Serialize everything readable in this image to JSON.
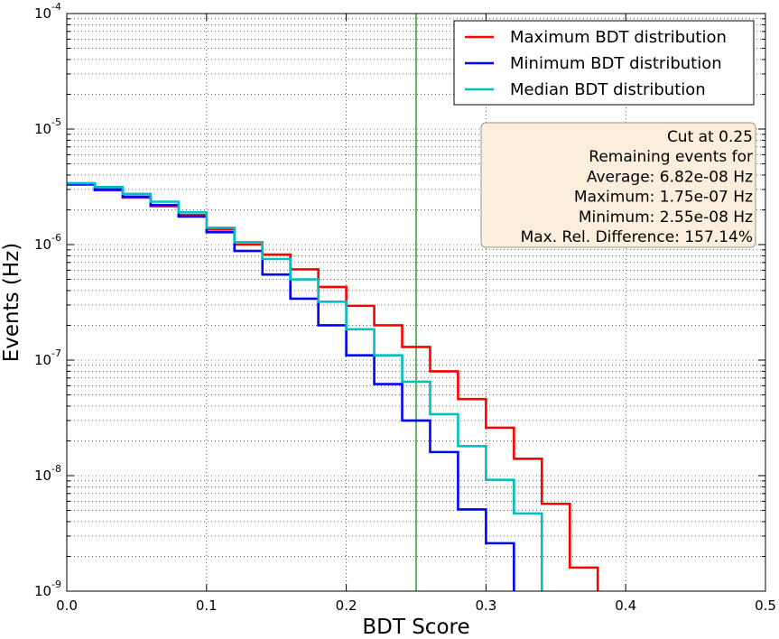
{
  "chart_data": {
    "type": "line",
    "xlabel": "BDT Score",
    "ylabel": "Events (Hz)",
    "xlim": [
      0.0,
      0.5
    ],
    "ylim": [
      1e-09,
      0.0001
    ],
    "yscale": "log",
    "grid": true,
    "x_ticks": [
      "0.0",
      "0.1",
      "0.2",
      "0.3",
      "0.4",
      "0.5"
    ],
    "y_ticks": [
      {
        "base": "10",
        "exp": "-9"
      },
      {
        "base": "10",
        "exp": "-8"
      },
      {
        "base": "10",
        "exp": "-7"
      },
      {
        "base": "10",
        "exp": "-6"
      },
      {
        "base": "10",
        "exp": "-5"
      },
      {
        "base": "10",
        "exp": "-4"
      }
    ],
    "bin_edges": [
      0.0,
      0.02,
      0.04,
      0.06,
      0.08,
      0.1,
      0.12,
      0.14,
      0.16,
      0.18,
      0.2,
      0.22,
      0.24,
      0.26,
      0.28,
      0.3,
      0.32,
      0.34,
      0.36,
      0.38
    ],
    "series": [
      {
        "name": "Maximum BDT distribution",
        "color": "#ff0000",
        "values": [
          3.3e-06,
          2.95e-06,
          2.55e-06,
          2.15e-06,
          1.8e-06,
          1.35e-06,
          1e-06,
          8.2e-07,
          6.1e-07,
          4.3e-07,
          2.95e-07,
          2e-07,
          1.3e-07,
          8e-08,
          4.6e-08,
          2.6e-08,
          1.4e-08,
          5.7e-09,
          1.6e-09
        ]
      },
      {
        "name": "Minimum BDT distribution",
        "color": "#0000ff",
        "values": [
          3.35e-06,
          3e-06,
          2.6e-06,
          2.2e-06,
          1.75e-06,
          1.28e-06,
          8.8e-07,
          5.5e-07,
          3.4e-07,
          2e-07,
          1.1e-07,
          6.2e-08,
          3e-08,
          1.6e-08,
          5.1e-09,
          2.6e-09
        ]
      },
      {
        "name": "Median BDT distribution",
        "color": "#00bfbf",
        "values": [
          3.4e-06,
          3.15e-06,
          2.75e-06,
          2.35e-06,
          1.9e-06,
          1.4e-06,
          1.05e-06,
          7.5e-07,
          5e-07,
          3.2e-07,
          1.85e-07,
          1.1e-07,
          6.5e-08,
          3.4e-08,
          1.8e-08,
          9.2e-09,
          4.7e-09
        ]
      }
    ],
    "cut_line": {
      "x": 0.25,
      "color": "#008000"
    },
    "legend_position": "top-right",
    "annotation": {
      "lines": [
        "Cut at 0.25",
        "Remaining events for",
        "Average: 6.82e-08 Hz",
        "Maximum: 1.75e-07 Hz",
        "Minimum: 2.55e-08 Hz",
        "Max. Rel. Difference: 157.14%"
      ],
      "background": "#fbeedd"
    }
  }
}
